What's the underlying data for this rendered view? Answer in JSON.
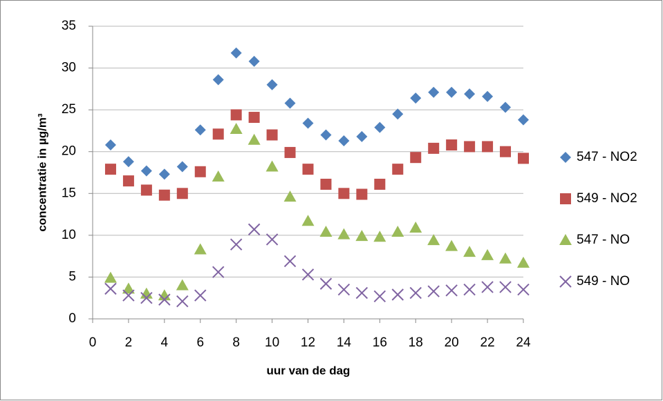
{
  "chart_data": {
    "type": "scatter",
    "x_label": "uur van de dag",
    "y_label": "concentratie in µg/m³",
    "x": [
      1,
      2,
      3,
      4,
      5,
      6,
      7,
      8,
      9,
      10,
      11,
      12,
      13,
      14,
      15,
      16,
      17,
      18,
      19,
      20,
      21,
      22,
      23,
      24
    ],
    "series": [
      {
        "name": "547 - NO2",
        "color": "#4f81bd",
        "marker": "diamond",
        "values": [
          20.8,
          18.8,
          17.7,
          17.3,
          18.2,
          22.6,
          28.6,
          31.8,
          30.8,
          28.0,
          25.8,
          23.4,
          22.0,
          21.3,
          21.8,
          22.9,
          24.5,
          26.4,
          27.1,
          27.1,
          26.9,
          26.6,
          25.3,
          23.8
        ]
      },
      {
        "name": "549 - NO2",
        "color": "#c0504d",
        "marker": "square",
        "values": [
          17.9,
          16.5,
          15.4,
          14.8,
          15.0,
          17.6,
          22.1,
          24.4,
          24.1,
          22.0,
          19.9,
          17.9,
          16.1,
          15.0,
          14.9,
          16.1,
          17.9,
          19.3,
          20.4,
          20.8,
          20.6,
          20.6,
          20.0,
          19.2
        ]
      },
      {
        "name": "547 - NO",
        "color": "#9bbb59",
        "marker": "triangle",
        "values": [
          4.9,
          3.6,
          3.0,
          2.8,
          4.0,
          8.3,
          17.0,
          22.7,
          21.4,
          18.2,
          14.6,
          11.7,
          10.4,
          10.1,
          9.9,
          9.8,
          10.4,
          10.9,
          9.4,
          8.7,
          8.0,
          7.6,
          7.2,
          6.7
        ]
      },
      {
        "name": "549 - NO",
        "color": "#8064a2",
        "marker": "cross",
        "values": [
          3.6,
          2.8,
          2.5,
          2.3,
          2.1,
          2.8,
          5.6,
          8.9,
          10.7,
          9.5,
          6.9,
          5.3,
          4.2,
          3.5,
          3.1,
          2.7,
          2.9,
          3.1,
          3.3,
          3.4,
          3.5,
          3.8,
          3.8,
          3.5
        ]
      }
    ],
    "xlim": [
      0,
      24
    ],
    "xticks": [
      0,
      2,
      4,
      6,
      8,
      10,
      12,
      14,
      16,
      18,
      20,
      22,
      24
    ],
    "ylim": [
      0,
      35
    ],
    "yticks": [
      0,
      5,
      10,
      15,
      20,
      25,
      30,
      35
    ],
    "grid": true,
    "legend": "right"
  }
}
